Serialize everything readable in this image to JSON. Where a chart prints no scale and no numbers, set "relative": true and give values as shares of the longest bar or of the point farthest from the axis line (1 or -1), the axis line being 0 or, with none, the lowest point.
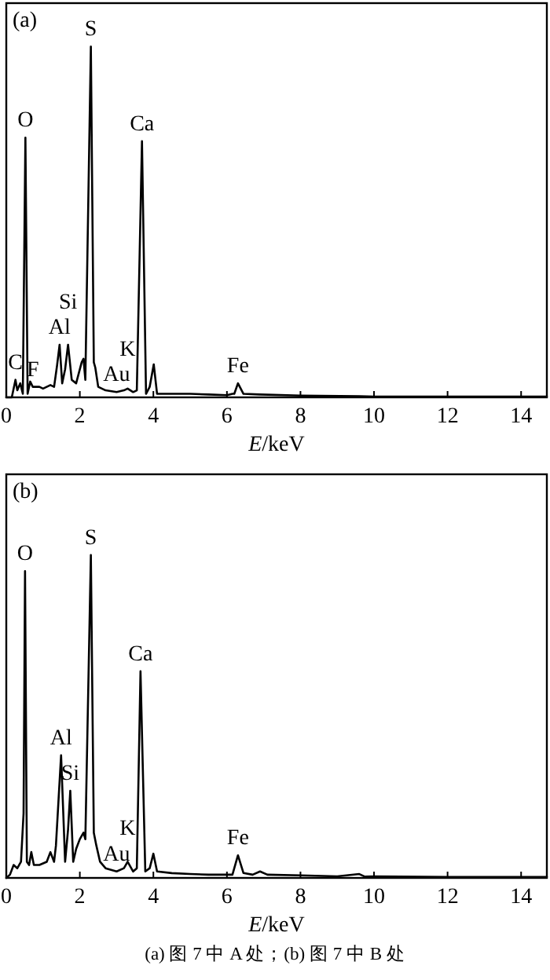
{
  "chart_data": [
    {
      "type": "line",
      "title": "(a)",
      "xlabel": "E/keV",
      "relative": true,
      "xlim": [
        0,
        14.7
      ],
      "xticks": [
        0,
        2,
        4,
        6,
        8,
        10,
        12,
        14
      ],
      "tick_labels": "x",
      "grid": false,
      "series": [
        {
          "color": "#000000",
          "x": [
            0.0,
            0.15,
            0.25,
            0.3,
            0.38,
            0.45,
            0.52,
            0.58,
            0.65,
            0.72,
            0.9,
            1.0,
            1.2,
            1.3,
            1.38,
            1.45,
            1.52,
            1.6,
            1.68,
            1.78,
            1.9,
            2.05,
            2.1,
            2.15,
            2.3,
            2.38,
            2.42,
            2.5,
            2.7,
            3.0,
            3.2,
            3.3,
            3.45,
            3.55,
            3.69,
            3.8,
            3.9,
            4.01,
            4.1,
            4.5,
            5.0,
            5.5,
            6.0,
            6.15,
            6.2,
            6.3,
            6.45,
            6.9,
            8.0,
            9.6,
            10.0,
            12.0,
            14.7
          ],
          "values": [
            0.0,
            0.0,
            0.05,
            0.02,
            0.04,
            0.01,
            0.74,
            0.01,
            0.045,
            0.03,
            0.03,
            0.025,
            0.035,
            0.03,
            0.09,
            0.15,
            0.04,
            0.08,
            0.15,
            0.05,
            0.04,
            0.1,
            0.11,
            0.05,
            1.0,
            0.1,
            0.085,
            0.03,
            0.02,
            0.015,
            0.02,
            0.025,
            0.015,
            0.02,
            0.73,
            0.01,
            0.03,
            0.094,
            0.01,
            0.01,
            0.01,
            0.008,
            0.006,
            0.01,
            0.01,
            0.04,
            0.01,
            0.008,
            0.005,
            0.003,
            0.002,
            0.002,
            0.002
          ]
        }
      ],
      "annotations": [
        {
          "text": "O",
          "x": 0.52,
          "y": 0.74
        },
        {
          "text": "S",
          "x": 2.3,
          "y": 1.0
        },
        {
          "text": "Ca",
          "x": 3.69,
          "y": 0.73
        },
        {
          "text": "Al",
          "x": 1.45,
          "y": 0.15
        },
        {
          "text": "Si",
          "x": 1.68,
          "y": 0.15
        },
        {
          "text": "Au",
          "x": 3.0,
          "y": 0.015
        },
        {
          "text": "C",
          "x": 0.25,
          "y": 0.05
        },
        {
          "text": "F",
          "x": 0.72,
          "y": 0.03
        },
        {
          "text": "K",
          "x": 3.3,
          "y": 0.025
        },
        {
          "text": "Fe",
          "x": 6.3,
          "y": 0.04
        }
      ]
    },
    {
      "type": "line",
      "title": "(b)",
      "xlabel": "E/keV",
      "relative": true,
      "xlim": [
        0,
        14.7
      ],
      "xticks": [
        0,
        2,
        4,
        6,
        8,
        10,
        12,
        14
      ],
      "tick_labels": "x",
      "grid": false,
      "series": [
        {
          "color": "#000000",
          "x": [
            0.0,
            0.1,
            0.2,
            0.3,
            0.4,
            0.47,
            0.51,
            0.56,
            0.62,
            0.68,
            0.75,
            0.9,
            1.1,
            1.2,
            1.3,
            1.35,
            1.49,
            1.6,
            1.68,
            1.74,
            1.82,
            1.9,
            2.0,
            2.1,
            2.15,
            2.3,
            2.38,
            2.45,
            2.55,
            2.7,
            3.0,
            3.2,
            3.3,
            3.45,
            3.55,
            3.65,
            3.78,
            3.9,
            4.0,
            4.1,
            4.5,
            5.0,
            5.5,
            6.0,
            6.15,
            6.3,
            6.45,
            6.7,
            6.9,
            7.1,
            8.0,
            9.0,
            9.6,
            9.75,
            10.0,
            12.0,
            14.7
          ],
          "values": [
            0.0,
            0.01,
            0.04,
            0.03,
            0.05,
            0.2,
            0.95,
            0.05,
            0.04,
            0.08,
            0.04,
            0.04,
            0.05,
            0.08,
            0.05,
            0.1,
            0.38,
            0.05,
            0.15,
            0.27,
            0.05,
            0.09,
            0.12,
            0.14,
            0.12,
            1.0,
            0.14,
            0.1,
            0.05,
            0.03,
            0.02,
            0.03,
            0.05,
            0.02,
            0.03,
            0.64,
            0.02,
            0.03,
            0.075,
            0.02,
            0.015,
            0.012,
            0.01,
            0.01,
            0.01,
            0.07,
            0.015,
            0.01,
            0.02,
            0.01,
            0.008,
            0.005,
            0.012,
            0.004,
            0.005,
            0.003,
            0.003
          ]
        }
      ],
      "annotations": [
        {
          "text": "O",
          "x": 0.51,
          "y": 0.95
        },
        {
          "text": "S",
          "x": 2.3,
          "y": 1.0
        },
        {
          "text": "Ca",
          "x": 3.65,
          "y": 0.64
        },
        {
          "text": "Al",
          "x": 1.49,
          "y": 0.38
        },
        {
          "text": "Si",
          "x": 1.74,
          "y": 0.27
        },
        {
          "text": "Au",
          "x": 3.0,
          "y": 0.02
        },
        {
          "text": "K",
          "x": 3.3,
          "y": 0.05
        },
        {
          "text": "Fe",
          "x": 6.3,
          "y": 0.07
        },
        "(a) 图 7 中 A 处；(b) 图 7 中 B 处"
      ]
    }
  ]
}
